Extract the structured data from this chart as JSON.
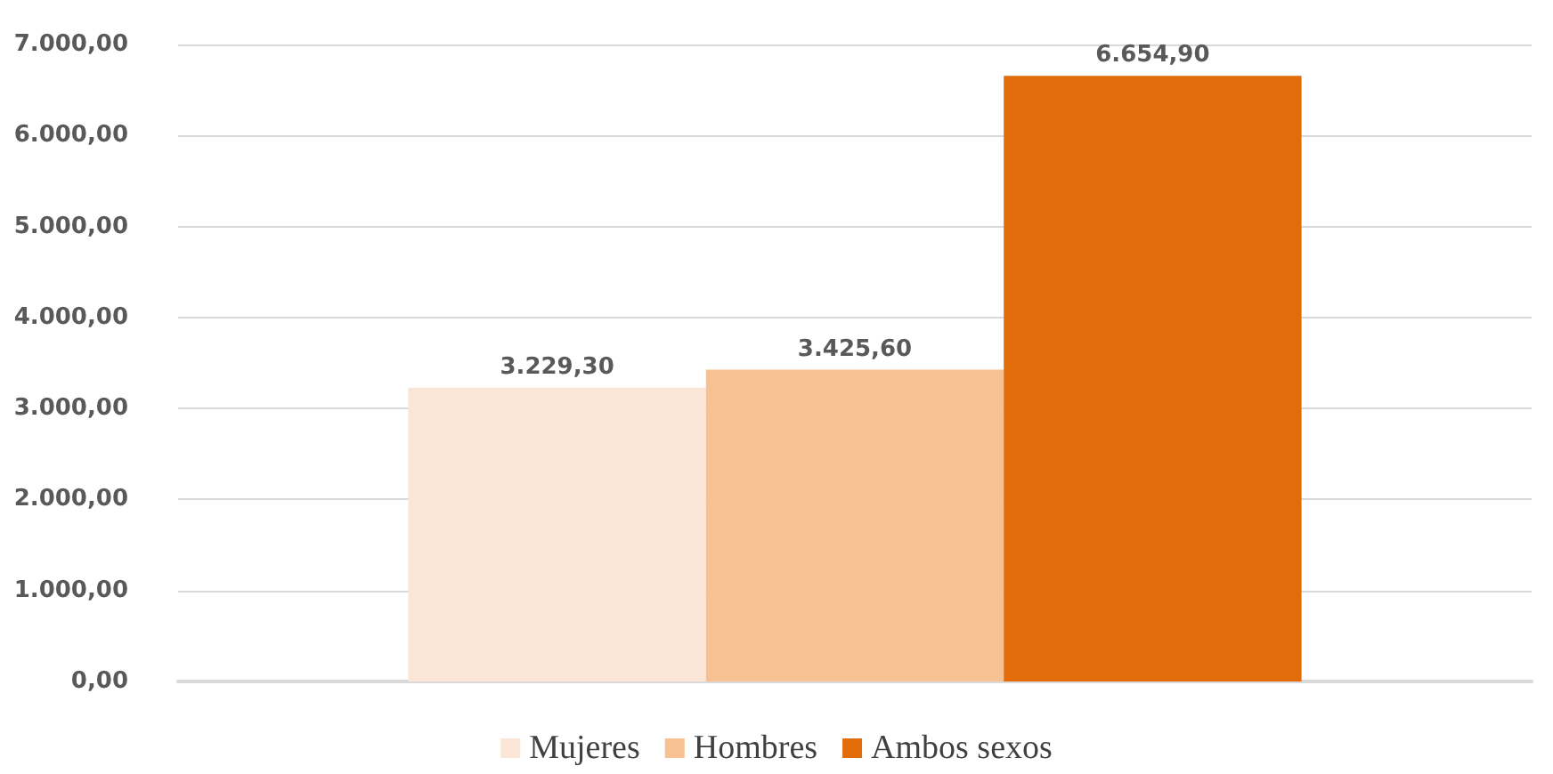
{
  "chart_data": {
    "type": "bar",
    "categories": [
      null
    ],
    "series": [
      {
        "name": "Mujeres",
        "color": "#fbe5d6",
        "values": [
          3229.3
        ],
        "value_labels": [
          "3.229,30"
        ]
      },
      {
        "name": "Hombres",
        "color": "#f8c192",
        "values": [
          3425.6
        ],
        "value_labels": [
          "3.425,60"
        ]
      },
      {
        "name": "Ambos sexos",
        "color": "#e26b0a",
        "values": [
          6654.9
        ],
        "value_labels": [
          "6.654,90"
        ]
      }
    ],
    "ylim": [
      0,
      7000
    ],
    "yticks": [
      {
        "value": 0,
        "label": "0,00"
      },
      {
        "value": 1000,
        "label": "1.000,00"
      },
      {
        "value": 2000,
        "label": "2.000,00"
      },
      {
        "value": 3000,
        "label": "3.000,00"
      },
      {
        "value": 4000,
        "label": "4.000,00"
      },
      {
        "value": 5000,
        "label": "5.000,00"
      },
      {
        "value": 6000,
        "label": "6.000,00"
      },
      {
        "value": 7000,
        "label": "7.000,00"
      }
    ],
    "grid": "y",
    "legend": "bottom"
  }
}
